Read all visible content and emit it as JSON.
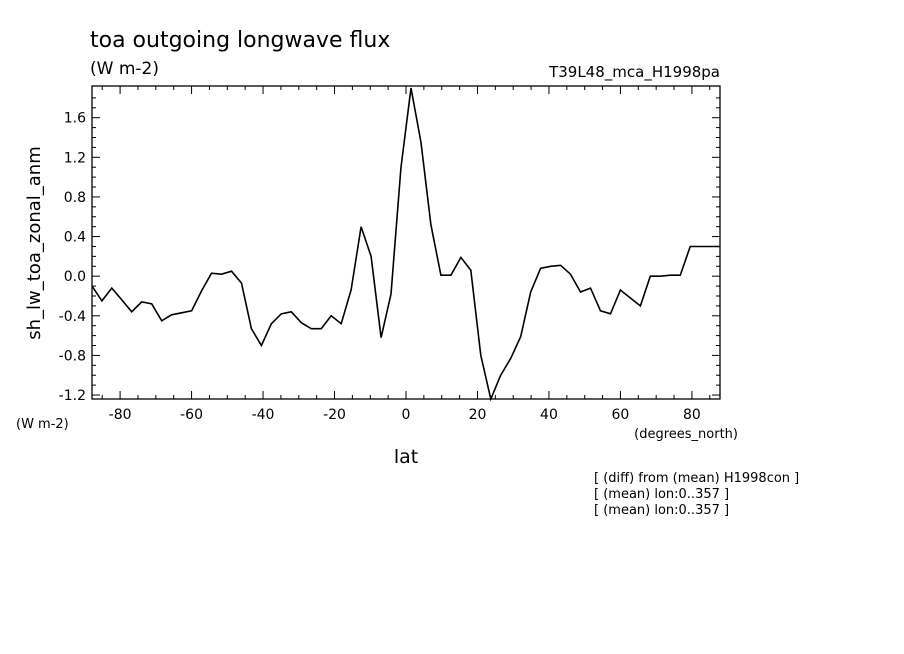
{
  "chart_data": {
    "type": "line",
    "title": "toa outgoing longwave flux",
    "subtitle": "(W m-2)",
    "run_label": "T39L48_mca_H1998pa",
    "xlabel": "lat",
    "xunits": "(degrees_north)",
    "ylabel": "sh_lw_toa_zonal_anm",
    "yunits": "(W m-2)",
    "xlim": [
      -87.86,
      87.86
    ],
    "ylim": [
      -1.24,
      1.92
    ],
    "xticks": [
      -80,
      -60,
      -40,
      -20,
      0,
      20,
      40,
      60,
      80
    ],
    "xtick_labels": [
      "-80",
      "-60",
      "-40",
      "-20",
      "0",
      "20",
      "40",
      "60",
      "80"
    ],
    "yticks": [
      -1.2,
      -0.8,
      -0.4,
      0.0,
      0.4,
      0.8,
      1.2,
      1.6
    ],
    "ytick_labels": [
      "-1.2",
      "-0.8",
      "-0.4",
      "0.0",
      "0.4",
      "0.8",
      "1.2",
      "1.6"
    ],
    "grid": false,
    "notes": [
      "[ (diff) from (mean) H1998con ]",
      "[ (mean) lon:0..357 ]",
      "[ (mean) lon:0..357 ]"
    ],
    "x": [
      -87.86,
      -85.1,
      -82.31,
      -79.53,
      -76.74,
      -73.95,
      -71.16,
      -68.37,
      -65.58,
      -62.79,
      -60.0,
      -57.21,
      -54.42,
      -51.63,
      -48.84,
      -46.04,
      -43.25,
      -40.46,
      -37.67,
      -34.88,
      -32.09,
      -29.3,
      -26.51,
      -23.72,
      -20.93,
      -18.14,
      -15.35,
      -12.56,
      -9.77,
      -6.98,
      -4.19,
      -1.4,
      1.4,
      4.19,
      6.98,
      9.77,
      12.56,
      15.35,
      18.14,
      20.93,
      23.72,
      26.51,
      29.3,
      32.09,
      34.88,
      37.67,
      40.46,
      43.25,
      46.04,
      48.84,
      51.63,
      54.42,
      57.21,
      60.0,
      62.79,
      65.58,
      68.37,
      71.16,
      73.95,
      76.74,
      79.53,
      82.31,
      85.1,
      87.86
    ],
    "y": [
      -0.1,
      -0.25,
      -0.12,
      -0.24,
      -0.36,
      -0.26,
      -0.28,
      -0.45,
      -0.39,
      -0.37,
      -0.35,
      -0.15,
      0.03,
      0.02,
      0.05,
      -0.07,
      -0.53,
      -0.7,
      -0.48,
      -0.38,
      -0.36,
      -0.47,
      -0.53,
      -0.53,
      -0.4,
      -0.48,
      -0.14,
      0.5,
      0.2,
      -0.62,
      -0.18,
      1.1,
      1.9,
      1.35,
      0.52,
      0.01,
      0.01,
      0.19,
      0.06,
      -0.8,
      -1.24,
      -1.0,
      -0.83,
      -0.61,
      -0.16,
      0.08,
      0.1,
      0.11,
      0.02,
      -0.16,
      -0.12,
      -0.35,
      -0.38,
      -0.14,
      -0.22,
      -0.3,
      0.0,
      0.0,
      0.01,
      0.01,
      0.3,
      0.3,
      0.3,
      0.3
    ]
  }
}
